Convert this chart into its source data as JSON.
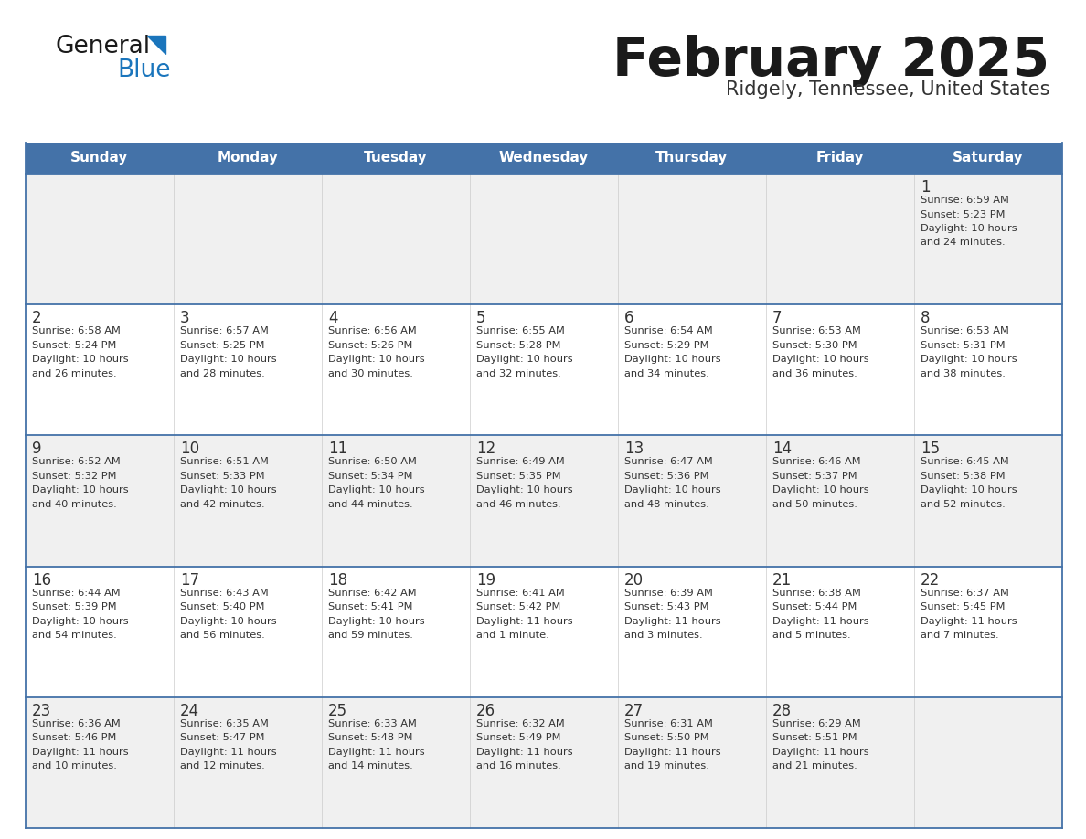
{
  "title": "February 2025",
  "subtitle": "Ridgely, Tennessee, United States",
  "header_bg": "#4472A8",
  "header_text": "#FFFFFF",
  "row_bg_odd": "#F0F0F0",
  "row_bg_even": "#FFFFFF",
  "cell_border_color": "#4472A8",
  "cell_divider_color": "#CCCCCC",
  "day_number_color": "#333333",
  "info_text_color": "#333333",
  "title_color": "#1a1a1a",
  "subtitle_color": "#333333",
  "logo_general_color": "#1a1a1a",
  "logo_blue_color": "#1a75bc",
  "logo_triangle_color": "#1a75bc",
  "days_of_week": [
    "Sunday",
    "Monday",
    "Tuesday",
    "Wednesday",
    "Thursday",
    "Friday",
    "Saturday"
  ],
  "calendar": [
    [
      null,
      null,
      null,
      null,
      null,
      null,
      {
        "day": "1",
        "sunrise": "6:59 AM",
        "sunset": "5:23 PM",
        "daylight": "10 hours",
        "daylight2": "and 24 minutes."
      }
    ],
    [
      {
        "day": "2",
        "sunrise": "6:58 AM",
        "sunset": "5:24 PM",
        "daylight": "10 hours",
        "daylight2": "and 26 minutes."
      },
      {
        "day": "3",
        "sunrise": "6:57 AM",
        "sunset": "5:25 PM",
        "daylight": "10 hours",
        "daylight2": "and 28 minutes."
      },
      {
        "day": "4",
        "sunrise": "6:56 AM",
        "sunset": "5:26 PM",
        "daylight": "10 hours",
        "daylight2": "and 30 minutes."
      },
      {
        "day": "5",
        "sunrise": "6:55 AM",
        "sunset": "5:28 PM",
        "daylight": "10 hours",
        "daylight2": "and 32 minutes."
      },
      {
        "day": "6",
        "sunrise": "6:54 AM",
        "sunset": "5:29 PM",
        "daylight": "10 hours",
        "daylight2": "and 34 minutes."
      },
      {
        "day": "7",
        "sunrise": "6:53 AM",
        "sunset": "5:30 PM",
        "daylight": "10 hours",
        "daylight2": "and 36 minutes."
      },
      {
        "day": "8",
        "sunrise": "6:53 AM",
        "sunset": "5:31 PM",
        "daylight": "10 hours",
        "daylight2": "and 38 minutes."
      }
    ],
    [
      {
        "day": "9",
        "sunrise": "6:52 AM",
        "sunset": "5:32 PM",
        "daylight": "10 hours",
        "daylight2": "and 40 minutes."
      },
      {
        "day": "10",
        "sunrise": "6:51 AM",
        "sunset": "5:33 PM",
        "daylight": "10 hours",
        "daylight2": "and 42 minutes."
      },
      {
        "day": "11",
        "sunrise": "6:50 AM",
        "sunset": "5:34 PM",
        "daylight": "10 hours",
        "daylight2": "and 44 minutes."
      },
      {
        "day": "12",
        "sunrise": "6:49 AM",
        "sunset": "5:35 PM",
        "daylight": "10 hours",
        "daylight2": "and 46 minutes."
      },
      {
        "day": "13",
        "sunrise": "6:47 AM",
        "sunset": "5:36 PM",
        "daylight": "10 hours",
        "daylight2": "and 48 minutes."
      },
      {
        "day": "14",
        "sunrise": "6:46 AM",
        "sunset": "5:37 PM",
        "daylight": "10 hours",
        "daylight2": "and 50 minutes."
      },
      {
        "day": "15",
        "sunrise": "6:45 AM",
        "sunset": "5:38 PM",
        "daylight": "10 hours",
        "daylight2": "and 52 minutes."
      }
    ],
    [
      {
        "day": "16",
        "sunrise": "6:44 AM",
        "sunset": "5:39 PM",
        "daylight": "10 hours",
        "daylight2": "and 54 minutes."
      },
      {
        "day": "17",
        "sunrise": "6:43 AM",
        "sunset": "5:40 PM",
        "daylight": "10 hours",
        "daylight2": "and 56 minutes."
      },
      {
        "day": "18",
        "sunrise": "6:42 AM",
        "sunset": "5:41 PM",
        "daylight": "10 hours",
        "daylight2": "and 59 minutes."
      },
      {
        "day": "19",
        "sunrise": "6:41 AM",
        "sunset": "5:42 PM",
        "daylight": "11 hours",
        "daylight2": "and 1 minute."
      },
      {
        "day": "20",
        "sunrise": "6:39 AM",
        "sunset": "5:43 PM",
        "daylight": "11 hours",
        "daylight2": "and 3 minutes."
      },
      {
        "day": "21",
        "sunrise": "6:38 AM",
        "sunset": "5:44 PM",
        "daylight": "11 hours",
        "daylight2": "and 5 minutes."
      },
      {
        "day": "22",
        "sunrise": "6:37 AM",
        "sunset": "5:45 PM",
        "daylight": "11 hours",
        "daylight2": "and 7 minutes."
      }
    ],
    [
      {
        "day": "23",
        "sunrise": "6:36 AM",
        "sunset": "5:46 PM",
        "daylight": "11 hours",
        "daylight2": "and 10 minutes."
      },
      {
        "day": "24",
        "sunrise": "6:35 AM",
        "sunset": "5:47 PM",
        "daylight": "11 hours",
        "daylight2": "and 12 minutes."
      },
      {
        "day": "25",
        "sunrise": "6:33 AM",
        "sunset": "5:48 PM",
        "daylight": "11 hours",
        "daylight2": "and 14 minutes."
      },
      {
        "day": "26",
        "sunrise": "6:32 AM",
        "sunset": "5:49 PM",
        "daylight": "11 hours",
        "daylight2": "and 16 minutes."
      },
      {
        "day": "27",
        "sunrise": "6:31 AM",
        "sunset": "5:50 PM",
        "daylight": "11 hours",
        "daylight2": "and 19 minutes."
      },
      {
        "day": "28",
        "sunrise": "6:29 AM",
        "sunset": "5:51 PM",
        "daylight": "11 hours",
        "daylight2": "and 21 minutes."
      },
      null
    ]
  ]
}
